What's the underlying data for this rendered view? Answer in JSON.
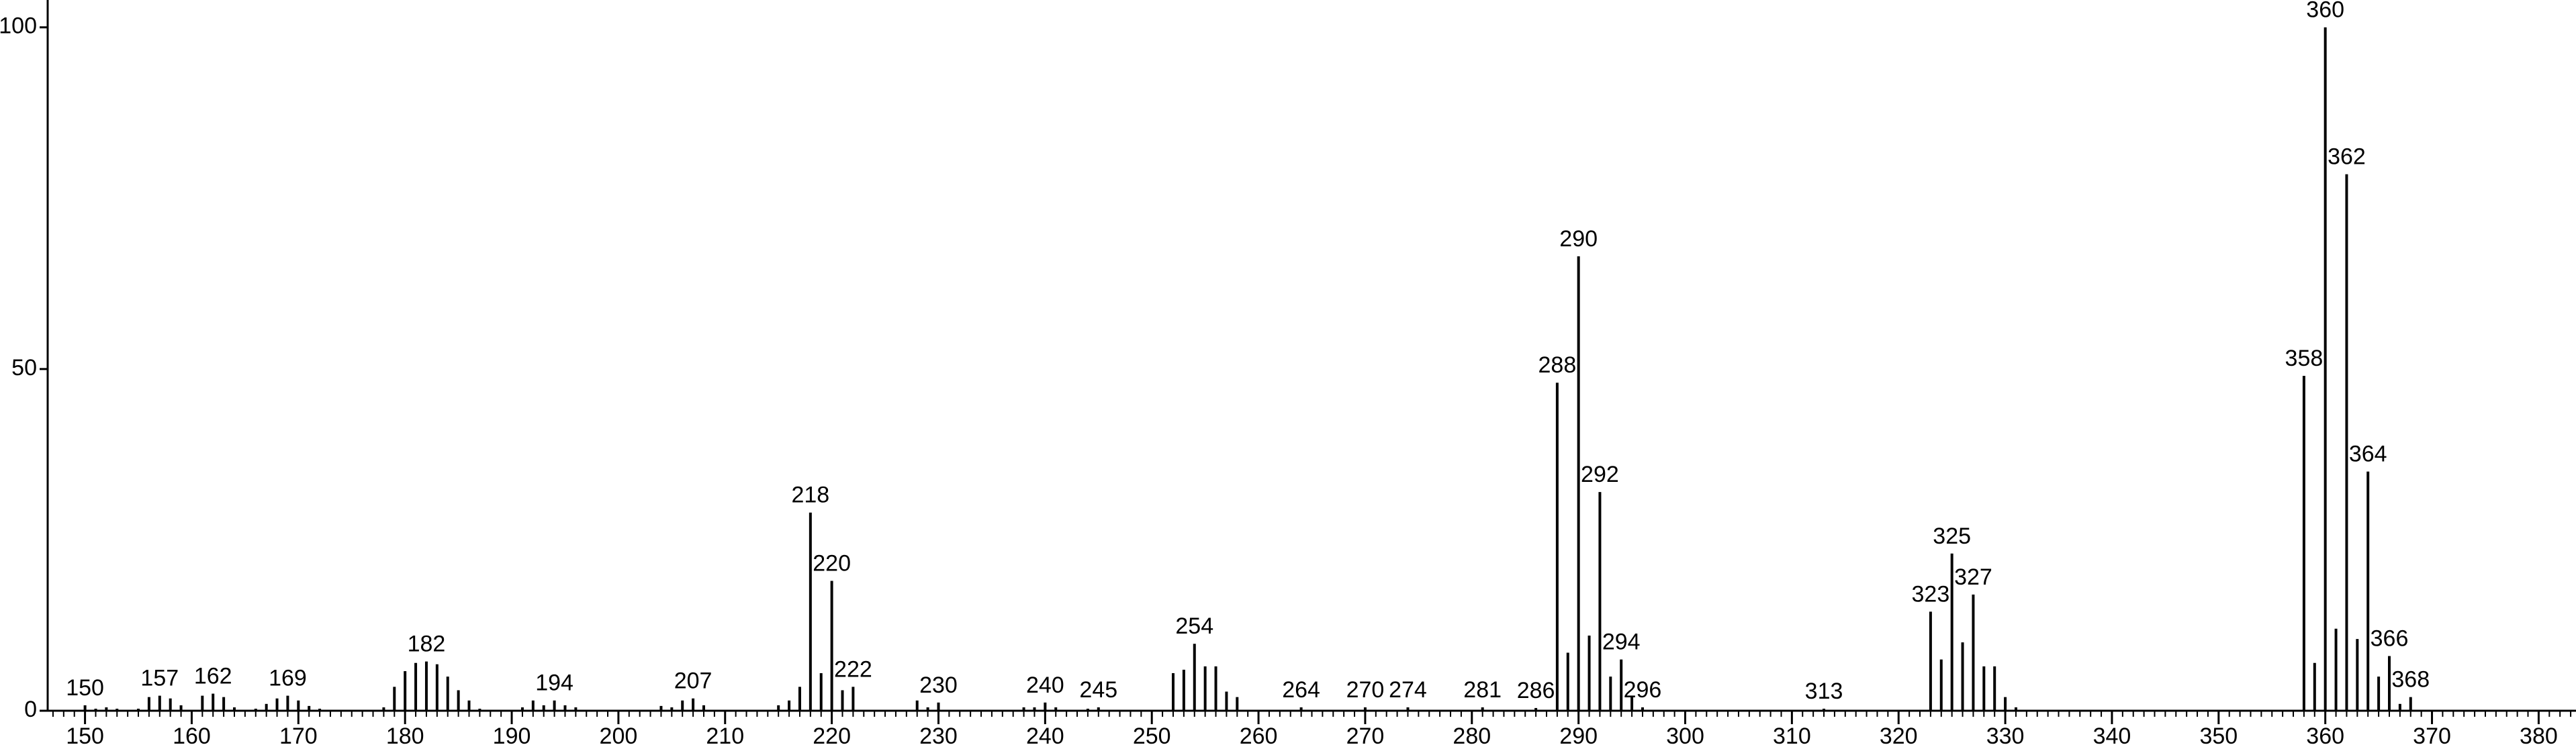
{
  "chart_data": {
    "type": "stick",
    "x": [
      150,
      151,
      152,
      153,
      155,
      156,
      157,
      158,
      159,
      161,
      162,
      163,
      164,
      166,
      167,
      168,
      169,
      170,
      171,
      172,
      178,
      179,
      180,
      181,
      182,
      183,
      184,
      185,
      186,
      187,
      191,
      192,
      193,
      194,
      195,
      196,
      204,
      205,
      206,
      207,
      208,
      215,
      216,
      217,
      218,
      219,
      220,
      221,
      222,
      228,
      229,
      230,
      238,
      239,
      240,
      241,
      244,
      245,
      252,
      253,
      254,
      255,
      256,
      257,
      258,
      264,
      270,
      274,
      281,
      286,
      288,
      289,
      290,
      291,
      292,
      293,
      294,
      295,
      296,
      313,
      323,
      324,
      325,
      326,
      327,
      328,
      329,
      330,
      331,
      358,
      359,
      360,
      361,
      362,
      363,
      364,
      365,
      366,
      367,
      368
    ],
    "values": [
      0.8,
      0.3,
      0.5,
      0.3,
      0.3,
      2,
      2.2,
      1.8,
      0.8,
      2.2,
      2.5,
      2,
      0.5,
      0.3,
      1,
      1.8,
      2.2,
      1.5,
      0.7,
      0.3,
      0.5,
      3.5,
      5.8,
      7,
      7.2,
      6.8,
      5,
      3,
      1.5,
      0.3,
      0.5,
      1.5,
      0.8,
      1.5,
      0.8,
      0.5,
      0.7,
      0.5,
      1.5,
      1.8,
      0.8,
      0.8,
      1.5,
      3.5,
      29,
      5.5,
      19,
      3,
      3.5,
      1.5,
      0.5,
      1.2,
      0.5,
      0.5,
      1.2,
      0.5,
      0.3,
      0.5,
      5.5,
      6,
      9.8,
      6.5,
      6.5,
      2.8,
      2,
      0.5,
      0.5,
      0.5,
      0.5,
      0.4,
      48,
      8.5,
      66.5,
      11,
      32,
      5,
      7.5,
      2,
      0.5,
      0.3,
      14.5,
      7.5,
      23,
      10,
      17,
      6.5,
      6.5,
      2,
      0.5,
      49,
      7,
      100,
      12,
      78.5,
      10.5,
      35,
      5,
      8,
      1,
      2
    ],
    "labeled": [
      true,
      false,
      false,
      false,
      false,
      false,
      true,
      false,
      false,
      false,
      true,
      false,
      false,
      false,
      false,
      false,
      true,
      false,
      false,
      false,
      false,
      false,
      false,
      false,
      true,
      false,
      false,
      false,
      false,
      false,
      false,
      false,
      false,
      true,
      false,
      false,
      false,
      false,
      false,
      true,
      false,
      false,
      false,
      false,
      true,
      false,
      true,
      false,
      true,
      false,
      false,
      true,
      false,
      false,
      true,
      false,
      false,
      true,
      false,
      false,
      true,
      false,
      false,
      false,
      false,
      true,
      true,
      true,
      true,
      true,
      true,
      false,
      true,
      false,
      true,
      false,
      true,
      false,
      true,
      true,
      true,
      false,
      true,
      false,
      true,
      false,
      false,
      false,
      false,
      true,
      false,
      true,
      false,
      true,
      false,
      true,
      false,
      true,
      false,
      true
    ],
    "color": "#000000",
    "xlim": [
      146.5,
      383.5
    ],
    "xticks": [
      150,
      160,
      170,
      180,
      190,
      200,
      210,
      220,
      230,
      240,
      250,
      260,
      270,
      280,
      290,
      300,
      310,
      320,
      330,
      340,
      350,
      360,
      370,
      380
    ],
    "x_minor_step": 1,
    "ylim": [
      0,
      104
    ],
    "yticks": [
      0,
      50,
      100
    ]
  }
}
